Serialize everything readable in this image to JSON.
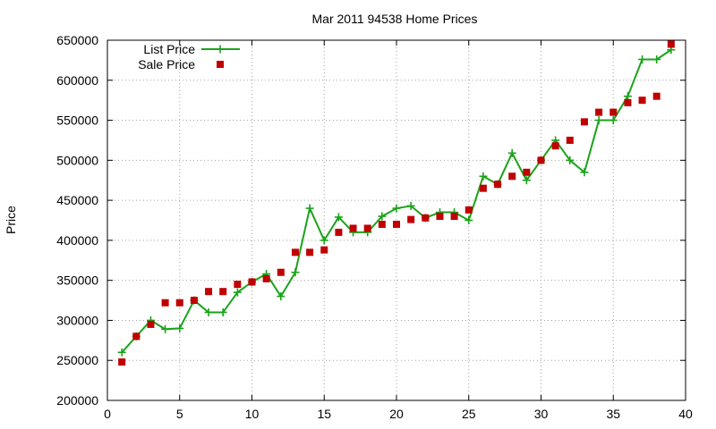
{
  "chart_data": {
    "type": "line",
    "title": "Mar 2011 94538 Home Prices",
    "xlabel": "",
    "ylabel": "Price",
    "xlim": [
      0,
      40
    ],
    "ylim": [
      200000,
      650000
    ],
    "x_ticks": [
      "0",
      "5",
      "10",
      "15",
      "20",
      "25",
      "30",
      "35",
      "40"
    ],
    "y_ticks": [
      "200000",
      "250000",
      "300000",
      "350000",
      "400000",
      "450000",
      "500000",
      "550000",
      "600000",
      "650000"
    ],
    "grid": true,
    "legend_position": "top-left",
    "series": [
      {
        "name": "List Price",
        "style": "line-with-plus-markers",
        "color": "#1aa31a",
        "points": [
          [
            1,
            260000
          ],
          [
            2,
            280000
          ],
          [
            3,
            300000
          ],
          [
            4,
            289000
          ],
          [
            5,
            290000
          ],
          [
            6,
            325000
          ],
          [
            7,
            310000
          ],
          [
            8,
            310000
          ],
          [
            9,
            335000
          ],
          [
            10,
            348000
          ],
          [
            11,
            358000
          ],
          [
            12,
            330000
          ],
          [
            13,
            360000
          ],
          [
            14,
            440000
          ],
          [
            15,
            400000
          ],
          [
            16,
            429000
          ],
          [
            17,
            410000
          ],
          [
            18,
            410000
          ],
          [
            19,
            430000
          ],
          [
            20,
            440000
          ],
          [
            21,
            443000
          ],
          [
            22,
            428000
          ],
          [
            23,
            435000
          ],
          [
            24,
            435000
          ],
          [
            25,
            425000
          ],
          [
            26,
            480000
          ],
          [
            27,
            470000
          ],
          [
            28,
            509000
          ],
          [
            29,
            475000
          ],
          [
            30,
            500000
          ],
          [
            31,
            525000
          ],
          [
            32,
            500000
          ],
          [
            33,
            485000
          ],
          [
            34,
            550000
          ],
          [
            35,
            550000
          ],
          [
            36,
            580000
          ],
          [
            37,
            626000
          ],
          [
            38,
            626000
          ],
          [
            39,
            638000
          ]
        ]
      },
      {
        "name": "Sale Price",
        "style": "square-markers",
        "color": "#c00000",
        "points": [
          [
            1,
            248000
          ],
          [
            2,
            280000
          ],
          [
            3,
            295000
          ],
          [
            4,
            322000
          ],
          [
            5,
            322000
          ],
          [
            6,
            325000
          ],
          [
            7,
            336000
          ],
          [
            8,
            336000
          ],
          [
            9,
            345000
          ],
          [
            10,
            348000
          ],
          [
            11,
            352000
          ],
          [
            12,
            360000
          ],
          [
            13,
            385000
          ],
          [
            14,
            385000
          ],
          [
            15,
            388000
          ],
          [
            16,
            410000
          ],
          [
            17,
            415000
          ],
          [
            18,
            415000
          ],
          [
            19,
            420000
          ],
          [
            20,
            420000
          ],
          [
            21,
            426000
          ],
          [
            22,
            428000
          ],
          [
            23,
            430000
          ],
          [
            24,
            430000
          ],
          [
            25,
            438000
          ],
          [
            26,
            465000
          ],
          [
            27,
            470000
          ],
          [
            28,
            480000
          ],
          [
            29,
            485000
          ],
          [
            30,
            500000
          ],
          [
            31,
            518000
          ],
          [
            32,
            525000
          ],
          [
            33,
            548000
          ],
          [
            34,
            560000
          ],
          [
            35,
            560000
          ],
          [
            36,
            572000
          ],
          [
            37,
            575000
          ],
          [
            38,
            580000
          ],
          [
            39,
            645000
          ]
        ]
      }
    ]
  }
}
